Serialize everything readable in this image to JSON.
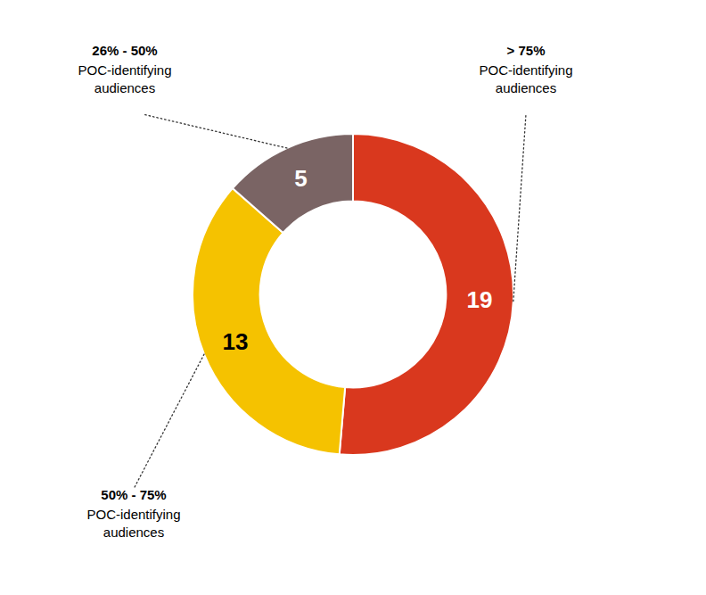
{
  "chart_data": {
    "type": "donut",
    "values": [
      19,
      13,
      5
    ],
    "colors": [
      "#D9381E",
      "#F5C200",
      "#7A6464"
    ],
    "data_labels": true,
    "annotations": [
      {
        "label": "> 75%",
        "text": "POC-identifying\naudiences"
      },
      {
        "label": "50% - 75%",
        "text": "POC-identifying\naudiences"
      },
      {
        "label": "26% - 50%",
        "text": "POC-identifying\naudiences"
      }
    ]
  }
}
